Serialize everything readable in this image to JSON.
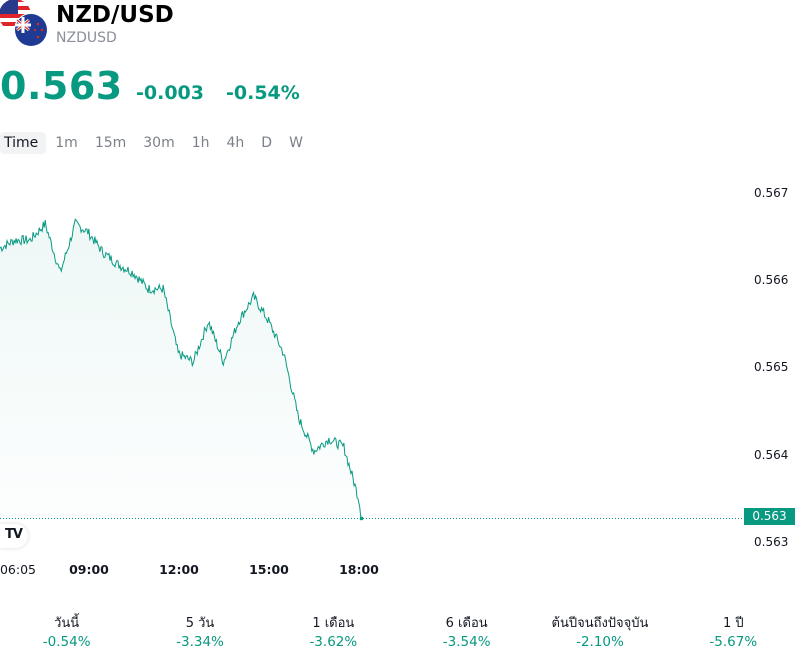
{
  "header": {
    "title": "NZD/USD",
    "code": "NZDUSD"
  },
  "quote": {
    "price": "0.563",
    "change": "-0.003",
    "change_pct": "-0.54%"
  },
  "tabs": [
    {
      "label": "Time",
      "active": true
    },
    {
      "label": "1m"
    },
    {
      "label": "15m"
    },
    {
      "label": "30m"
    },
    {
      "label": "1h"
    },
    {
      "label": "4h"
    },
    {
      "label": "D"
    },
    {
      "label": "W"
    }
  ],
  "colors": {
    "accent": "#089981",
    "muted": "#8a8f99"
  },
  "chart_data": {
    "type": "area",
    "y_tick_labels": [
      "0.567",
      "0.566",
      "0.565",
      "0.564",
      "0.563"
    ],
    "x_tick_labels": [
      "06:05",
      "09:00",
      "12:00",
      "15:00",
      "18:00"
    ],
    "ylim": [
      0.56288,
      0.56718
    ],
    "last_price_label": "0.563",
    "last_value": 0.56317,
    "series": [
      {
        "x": [
          "06:05",
          "06:35",
          "07:05",
          "07:35",
          "08:05",
          "08:35",
          "09:00",
          "09:30",
          "10:00",
          "10:30",
          "11:00",
          "11:30",
          "12:00",
          "12:30",
          "13:00",
          "13:30",
          "14:00",
          "14:30",
          "15:00",
          "15:30",
          "16:00",
          "16:30",
          "17:00",
          "17:30",
          "18:00",
          "18:05"
        ],
        "values": [
          0.5665,
          0.5666,
          0.5666,
          0.5668,
          0.5662,
          0.5668,
          0.5667,
          0.56645,
          0.5663,
          0.5662,
          0.566,
          0.566,
          0.5652,
          0.5651,
          0.5656,
          0.5651,
          0.5656,
          0.5659,
          0.5656,
          0.5652,
          0.5644,
          0.564,
          0.56415,
          0.56405,
          0.5634,
          0.56317
        ]
      }
    ],
    "grid": false
  },
  "performance": [
    {
      "label": "วันนี้",
      "value": "-0.54%"
    },
    {
      "label": "5 วัน",
      "value": "-3.34%"
    },
    {
      "label": "1 เดือน",
      "value": "-3.62%"
    },
    {
      "label": "6 เดือน",
      "value": "-3.54%"
    },
    {
      "label": "ต้นปีจนถึงปัจจุบัน",
      "value": "-2.10%"
    },
    {
      "label": "1 ปี",
      "value": "-5.67%"
    }
  ]
}
